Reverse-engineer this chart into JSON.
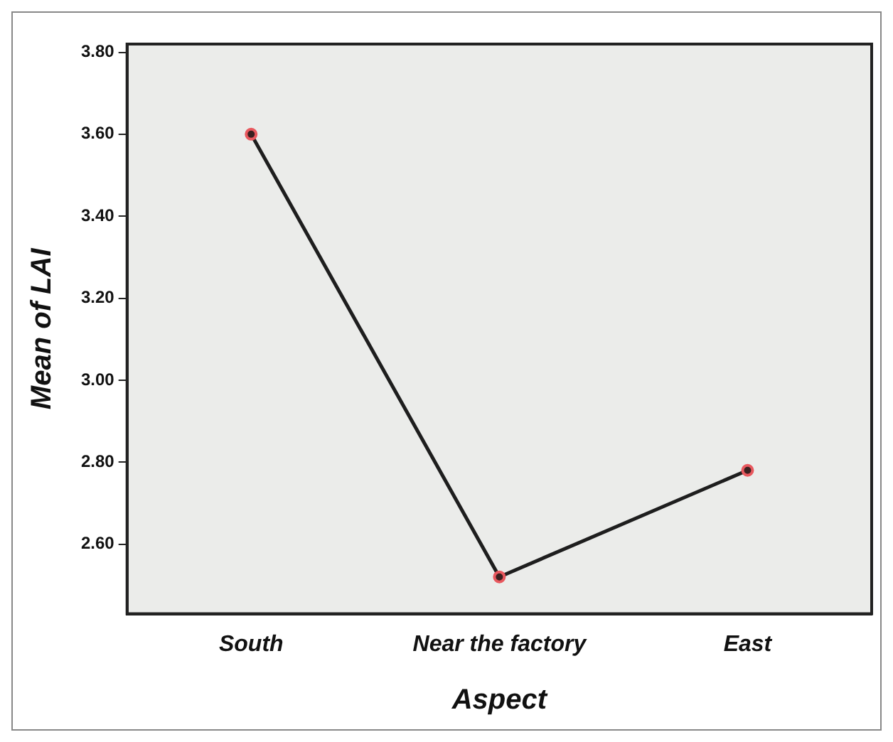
{
  "chart_data": {
    "type": "line",
    "xlabel": "Aspect",
    "ylabel": "Mean of LAI",
    "categories": [
      "South",
      "Near the factory",
      "East"
    ],
    "series": [
      {
        "color": "#1e1e1e",
        "values": [
          3.6,
          2.52,
          2.78
        ]
      }
    ],
    "ylim": [
      2.43,
      3.82
    ],
    "yticks": [
      {
        "value": 2.6,
        "label": "2.60"
      },
      {
        "value": 2.8,
        "label": "2.80"
      },
      {
        "value": 3.0,
        "label": "3.00"
      },
      {
        "value": 3.2,
        "label": "3.20"
      },
      {
        "value": 3.4,
        "label": "3.40"
      },
      {
        "value": 3.6,
        "label": "3.60"
      },
      {
        "value": 3.8,
        "label": "3.80"
      }
    ],
    "grid": false,
    "legend": false,
    "marker": "circle",
    "line_style": "solid"
  }
}
